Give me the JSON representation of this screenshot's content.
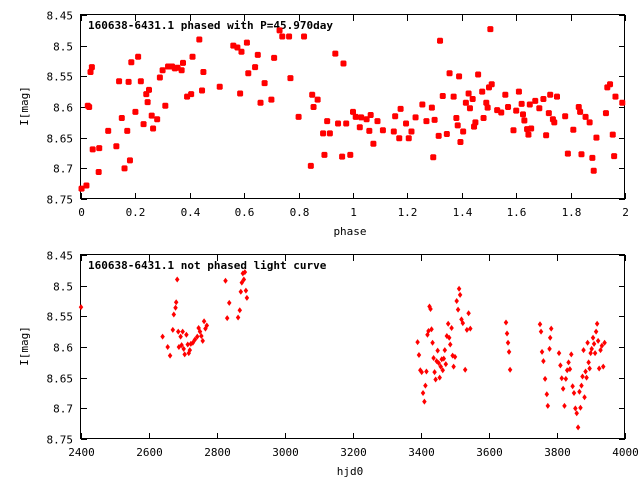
{
  "marker_color": "#ff0000",
  "chart_data": [
    {
      "type": "scatter",
      "title": "160638-6431.1 phased with P=45.970day",
      "xlabel": "phase",
      "ylabel": "I[mag]",
      "xlim": [
        0,
        2
      ],
      "ylim": [
        8.45,
        8.75
      ],
      "y_inverted": true,
      "grid": false,
      "xticks": [
        "0",
        "0.2",
        "0.4",
        "0.6",
        "0.8",
        "1",
        "1.2",
        "1.4",
        "1.6",
        "1.8",
        "2"
      ],
      "yticks": [
        "8.45",
        "8.5",
        "8.55",
        "8.6",
        "8.65",
        "8.7",
        "8.75"
      ],
      "marker": "filled-square",
      "points": [
        [
          0.002,
          8.733
        ],
        [
          0.02,
          8.728
        ],
        [
          0.025,
          8.598
        ],
        [
          0.03,
          8.6
        ],
        [
          0.035,
          8.543
        ],
        [
          0.04,
          8.535
        ],
        [
          0.043,
          8.669
        ],
        [
          0.065,
          8.706
        ],
        [
          0.067,
          8.667
        ],
        [
          0.1,
          8.639
        ],
        [
          0.13,
          8.664
        ],
        [
          0.14,
          8.558
        ],
        [
          0.15,
          8.618
        ],
        [
          0.16,
          8.7
        ],
        [
          0.17,
          8.639
        ],
        [
          0.175,
          8.559
        ],
        [
          0.18,
          8.687
        ],
        [
          0.185,
          8.527
        ],
        [
          0.2,
          8.608
        ],
        [
          0.21,
          8.518
        ],
        [
          0.22,
          8.558
        ],
        [
          0.23,
          8.628
        ],
        [
          0.24,
          8.579
        ],
        [
          0.245,
          8.592
        ],
        [
          0.25,
          8.572
        ],
        [
          0.26,
          8.614
        ],
        [
          0.265,
          8.635
        ],
        [
          0.28,
          8.62
        ],
        [
          0.29,
          8.552
        ],
        [
          0.3,
          8.54
        ],
        [
          0.31,
          8.598
        ],
        [
          0.32,
          8.534
        ],
        [
          0.335,
          8.534
        ],
        [
          0.345,
          8.537
        ],
        [
          0.355,
          8.536
        ],
        [
          0.37,
          8.54
        ],
        [
          0.375,
          8.528
        ],
        [
          0.39,
          8.583
        ],
        [
          0.405,
          8.579
        ],
        [
          0.41,
          8.518
        ],
        [
          0.435,
          8.49
        ],
        [
          0.445,
          8.573
        ],
        [
          0.45,
          8.543
        ],
        [
          0.51,
          8.567
        ],
        [
          0.56,
          8.5
        ],
        [
          0.575,
          8.503
        ],
        [
          0.585,
          8.578
        ],
        [
          0.59,
          8.51
        ],
        [
          0.61,
          8.495
        ],
        [
          0.615,
          8.545
        ],
        [
          0.64,
          8.535
        ],
        [
          0.65,
          8.515
        ],
        [
          0.66,
          8.593
        ],
        [
          0.675,
          8.561
        ],
        [
          0.7,
          8.588
        ],
        [
          0.71,
          8.52
        ],
        [
          0.73,
          8.475
        ],
        [
          0.74,
          8.485
        ],
        [
          0.765,
          8.485
        ],
        [
          0.77,
          8.553
        ],
        [
          0.8,
          8.616
        ],
        [
          0.82,
          8.485
        ],
        [
          0.845,
          8.696
        ],
        [
          0.85,
          8.58
        ],
        [
          0.855,
          8.6
        ],
        [
          0.87,
          8.588
        ],
        [
          0.89,
          8.643
        ],
        [
          0.895,
          8.678
        ],
        [
          0.905,
          8.623
        ],
        [
          0.915,
          8.643
        ],
        [
          0.935,
          8.513
        ],
        [
          0.945,
          8.627
        ],
        [
          0.96,
          8.681
        ],
        [
          0.965,
          8.529
        ],
        [
          0.975,
          8.627
        ],
        [
          0.99,
          8.678
        ],
        [
          1.0,
          8.608
        ],
        [
          1.01,
          8.616
        ],
        [
          1.025,
          8.633
        ],
        [
          1.03,
          8.617
        ],
        [
          1.05,
          8.62
        ],
        [
          1.06,
          8.639
        ],
        [
          1.065,
          8.613
        ],
        [
          1.075,
          8.66
        ],
        [
          1.09,
          8.623
        ],
        [
          1.11,
          8.638
        ],
        [
          1.15,
          8.64
        ],
        [
          1.155,
          8.615
        ],
        [
          1.17,
          8.651
        ],
        [
          1.175,
          8.603
        ],
        [
          1.195,
          8.627
        ],
        [
          1.205,
          8.651
        ],
        [
          1.215,
          8.64
        ],
        [
          1.23,
          8.617
        ],
        [
          1.255,
          8.596
        ],
        [
          1.27,
          8.623
        ],
        [
          1.29,
          8.601
        ],
        [
          1.295,
          8.682
        ],
        [
          1.3,
          8.621
        ],
        [
          1.315,
          8.647
        ],
        [
          1.32,
          8.492
        ],
        [
          1.33,
          8.582
        ],
        [
          1.345,
          8.644
        ],
        [
          1.355,
          8.545
        ],
        [
          1.37,
          8.583
        ],
        [
          1.38,
          8.618
        ],
        [
          1.385,
          8.63
        ],
        [
          1.39,
          8.55
        ],
        [
          1.395,
          8.657
        ],
        [
          1.405,
          8.64
        ],
        [
          1.415,
          8.593
        ],
        [
          1.425,
          8.578
        ],
        [
          1.43,
          8.602
        ],
        [
          1.44,
          8.587
        ],
        [
          1.445,
          8.632
        ],
        [
          1.45,
          8.625
        ],
        [
          1.46,
          8.547
        ],
        [
          1.475,
          8.575
        ],
        [
          1.48,
          8.618
        ],
        [
          1.49,
          8.593
        ],
        [
          1.495,
          8.601
        ],
        [
          1.5,
          8.568
        ],
        [
          1.505,
          8.473
        ],
        [
          1.51,
          8.563
        ],
        [
          1.53,
          8.605
        ],
        [
          1.545,
          8.609
        ],
        [
          1.56,
          8.58
        ],
        [
          1.57,
          8.6
        ],
        [
          1.59,
          8.638
        ],
        [
          1.6,
          8.606
        ],
        [
          1.61,
          8.575
        ],
        [
          1.62,
          8.595
        ],
        [
          1.625,
          8.612
        ],
        [
          1.63,
          8.622
        ],
        [
          1.64,
          8.636
        ],
        [
          1.645,
          8.645
        ],
        [
          1.65,
          8.596
        ],
        [
          1.655,
          8.635
        ],
        [
          1.67,
          8.59
        ],
        [
          1.685,
          8.602
        ],
        [
          1.7,
          8.587
        ],
        [
          1.71,
          8.646
        ],
        [
          1.72,
          8.61
        ],
        [
          1.725,
          8.58
        ],
        [
          1.735,
          8.62
        ],
        [
          1.74,
          8.625
        ],
        [
          1.75,
          8.583
        ],
        [
          1.78,
          8.615
        ],
        [
          1.79,
          8.676
        ],
        [
          1.81,
          8.637
        ],
        [
          1.83,
          8.6
        ],
        [
          1.835,
          8.608
        ],
        [
          1.84,
          8.677
        ],
        [
          1.855,
          8.616
        ],
        [
          1.87,
          8.625
        ],
        [
          1.88,
          8.683
        ],
        [
          1.885,
          8.704
        ],
        [
          1.895,
          8.65
        ],
        [
          1.93,
          8.61
        ],
        [
          1.935,
          8.568
        ],
        [
          1.945,
          8.563
        ],
        [
          1.955,
          8.645
        ],
        [
          1.96,
          8.68
        ],
        [
          1.965,
          8.583
        ],
        [
          1.99,
          8.593
        ]
      ]
    },
    {
      "type": "scatter",
      "title": "160638-6431.1 not phased light curve",
      "xlabel": "hjd0",
      "ylabel": "I[mag]",
      "xlim": [
        2400,
        4000
      ],
      "ylim": [
        8.45,
        8.75
      ],
      "y_inverted": true,
      "grid": false,
      "xticks": [
        "2400",
        "2600",
        "2800",
        "3000",
        "3200",
        "3400",
        "3600",
        "3800",
        "4000"
      ],
      "yticks": [
        "8.45",
        "8.5",
        "8.55",
        "8.6",
        "8.65",
        "8.7",
        "8.75"
      ],
      "marker": "small-diamond",
      "points": [
        [
          2400,
          8.535
        ],
        [
          2640,
          8.583
        ],
        [
          2655,
          8.6
        ],
        [
          2662,
          8.614
        ],
        [
          2670,
          8.572
        ],
        [
          2673,
          8.547
        ],
        [
          2678,
          8.536
        ],
        [
          2680,
          8.527
        ],
        [
          2683,
          8.49
        ],
        [
          2686,
          8.575
        ],
        [
          2688,
          8.6
        ],
        [
          2693,
          8.583
        ],
        [
          2696,
          8.597
        ],
        [
          2699,
          8.575
        ],
        [
          2702,
          8.603
        ],
        [
          2705,
          8.612
        ],
        [
          2710,
          8.58
        ],
        [
          2714,
          8.596
        ],
        [
          2717,
          8.61
        ],
        [
          2720,
          8.605
        ],
        [
          2723,
          8.595
        ],
        [
          2729,
          8.593
        ],
        [
          2735,
          8.588
        ],
        [
          2742,
          8.583
        ],
        [
          2746,
          8.569
        ],
        [
          2750,
          8.575
        ],
        [
          2754,
          8.582
        ],
        [
          2758,
          8.59
        ],
        [
          2762,
          8.558
        ],
        [
          2766,
          8.57
        ],
        [
          2770,
          8.565
        ],
        [
          2825,
          8.492
        ],
        [
          2830,
          8.553
        ],
        [
          2836,
          8.528
        ],
        [
          2862,
          8.552
        ],
        [
          2867,
          8.54
        ],
        [
          2870,
          8.51
        ],
        [
          2873,
          8.495
        ],
        [
          2876,
          8.48
        ],
        [
          2879,
          8.49
        ],
        [
          2882,
          8.478
        ],
        [
          2885,
          8.508
        ],
        [
          2888,
          8.52
        ],
        [
          3390,
          8.592
        ],
        [
          3394,
          8.613
        ],
        [
          3398,
          8.638
        ],
        [
          3402,
          8.641
        ],
        [
          3406,
          8.675
        ],
        [
          3410,
          8.689
        ],
        [
          3413,
          8.663
        ],
        [
          3416,
          8.64
        ],
        [
          3419,
          8.58
        ],
        [
          3422,
          8.574
        ],
        [
          3425,
          8.534
        ],
        [
          3428,
          8.538
        ],
        [
          3431,
          8.571
        ],
        [
          3434,
          8.593
        ],
        [
          3437,
          8.618
        ],
        [
          3440,
          8.641
        ],
        [
          3443,
          8.653
        ],
        [
          3446,
          8.623
        ],
        [
          3449,
          8.606
        ],
        [
          3452,
          8.626
        ],
        [
          3455,
          8.65
        ],
        [
          3458,
          8.632
        ],
        [
          3461,
          8.62
        ],
        [
          3464,
          8.638
        ],
        [
          3467,
          8.619
        ],
        [
          3470,
          8.605
        ],
        [
          3473,
          8.628
        ],
        [
          3476,
          8.582
        ],
        [
          3480,
          8.562
        ],
        [
          3483,
          8.585
        ],
        [
          3486,
          8.596
        ],
        [
          3490,
          8.569
        ],
        [
          3493,
          8.614
        ],
        [
          3496,
          8.632
        ],
        [
          3500,
          8.616
        ],
        [
          3505,
          8.525
        ],
        [
          3509,
          8.539
        ],
        [
          3512,
          8.505
        ],
        [
          3515,
          8.515
        ],
        [
          3519,
          8.555
        ],
        [
          3523,
          8.561
        ],
        [
          3530,
          8.637
        ],
        [
          3535,
          8.572
        ],
        [
          3540,
          8.545
        ],
        [
          3545,
          8.57
        ],
        [
          3650,
          8.56
        ],
        [
          3653,
          8.578
        ],
        [
          3656,
          8.593
        ],
        [
          3659,
          8.608
        ],
        [
          3662,
          8.637
        ],
        [
          3750,
          8.563
        ],
        [
          3753,
          8.575
        ],
        [
          3756,
          8.608
        ],
        [
          3760,
          8.623
        ],
        [
          3765,
          8.652
        ],
        [
          3770,
          8.677
        ],
        [
          3773,
          8.696
        ],
        [
          3778,
          8.603
        ],
        [
          3780,
          8.585
        ],
        [
          3783,
          8.57
        ],
        [
          3806,
          8.61
        ],
        [
          3810,
          8.63
        ],
        [
          3814,
          8.651
        ],
        [
          3818,
          8.668
        ],
        [
          3822,
          8.696
        ],
        [
          3826,
          8.652
        ],
        [
          3830,
          8.638
        ],
        [
          3834,
          8.625
        ],
        [
          3838,
          8.636
        ],
        [
          3842,
          8.612
        ],
        [
          3846,
          8.664
        ],
        [
          3850,
          8.675
        ],
        [
          3854,
          8.7
        ],
        [
          3858,
          8.708
        ],
        [
          3862,
          8.731
        ],
        [
          3866,
          8.673
        ],
        [
          3869,
          8.699
        ],
        [
          3872,
          8.663
        ],
        [
          3875,
          8.648
        ],
        [
          3878,
          8.605
        ],
        [
          3881,
          8.682
        ],
        [
          3884,
          8.64
        ],
        [
          3887,
          8.65
        ],
        [
          3890,
          8.593
        ],
        [
          3893,
          8.625
        ],
        [
          3896,
          8.635
        ],
        [
          3899,
          8.61
        ],
        [
          3902,
          8.603
        ],
        [
          3906,
          8.585
        ],
        [
          3909,
          8.595
        ],
        [
          3912,
          8.61
        ],
        [
          3915,
          8.575
        ],
        [
          3918,
          8.562
        ],
        [
          3921,
          8.59
        ],
        [
          3924,
          8.635
        ],
        [
          3928,
          8.605
        ],
        [
          3932,
          8.598
        ],
        [
          3936,
          8.632
        ],
        [
          3940,
          8.593
        ]
      ]
    }
  ]
}
